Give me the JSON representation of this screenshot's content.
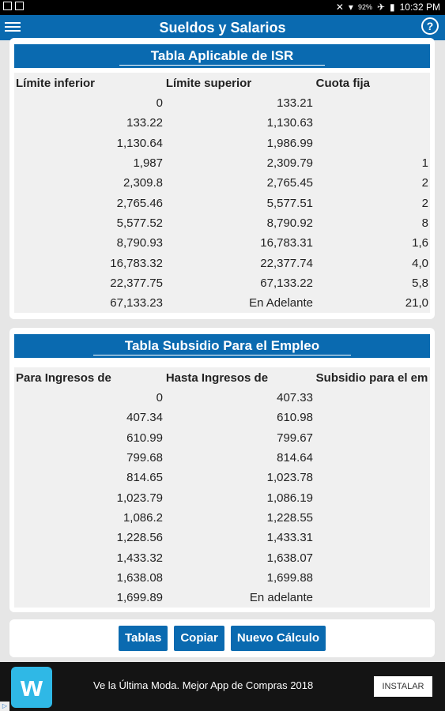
{
  "status": {
    "time": "10:32 PM",
    "battery": "92%"
  },
  "app": {
    "title": "Sueldos y Salarios",
    "help_glyph": "?"
  },
  "isr": {
    "title": "Tabla Aplicable de ISR",
    "headers": [
      "Límite inferior",
      "Límite superior",
      "Cuota fija"
    ],
    "rows": [
      [
        "0",
        "133.21",
        ""
      ],
      [
        "133.22",
        "1,130.63",
        ""
      ],
      [
        "1,130.64",
        "1,986.99",
        ""
      ],
      [
        "1,987",
        "2,309.79",
        "1"
      ],
      [
        "2,309.8",
        "2,765.45",
        "2"
      ],
      [
        "2,765.46",
        "5,577.51",
        "2"
      ],
      [
        "5,577.52",
        "8,790.92",
        "8"
      ],
      [
        "8,790.93",
        "16,783.31",
        "1,6"
      ],
      [
        "16,783.32",
        "22,377.74",
        "4,0"
      ],
      [
        "22,377.75",
        "67,133.22",
        "5,8"
      ],
      [
        "67,133.23",
        "En Adelante",
        "21,0"
      ]
    ]
  },
  "subsidio": {
    "title": "Tabla Subsidio Para el Empleo",
    "headers": [
      "Para Ingresos de",
      "Hasta Ingresos de",
      "Subsidio para el em"
    ],
    "rows": [
      [
        "0",
        "407.33",
        ""
      ],
      [
        "407.34",
        "610.98",
        ""
      ],
      [
        "610.99",
        "799.67",
        ""
      ],
      [
        "799.68",
        "814.64",
        ""
      ],
      [
        "814.65",
        "1,023.78",
        ""
      ],
      [
        "1,023.79",
        "1,086.19",
        ""
      ],
      [
        "1,086.2",
        "1,228.55",
        ""
      ],
      [
        "1,228.56",
        "1,433.31",
        ""
      ],
      [
        "1,433.32",
        "1,638.07",
        ""
      ],
      [
        "1,638.08",
        "1,699.88",
        ""
      ],
      [
        "1,699.89",
        "En adelante",
        ""
      ]
    ]
  },
  "buttons": {
    "tablas": "Tablas",
    "copiar": "Copiar",
    "nuevo": "Nuevo Cálculo"
  },
  "ad": {
    "logo": "w",
    "text": "Ve la Última Moda. Mejor App de Compras 2018",
    "install": "INSTALAR"
  }
}
